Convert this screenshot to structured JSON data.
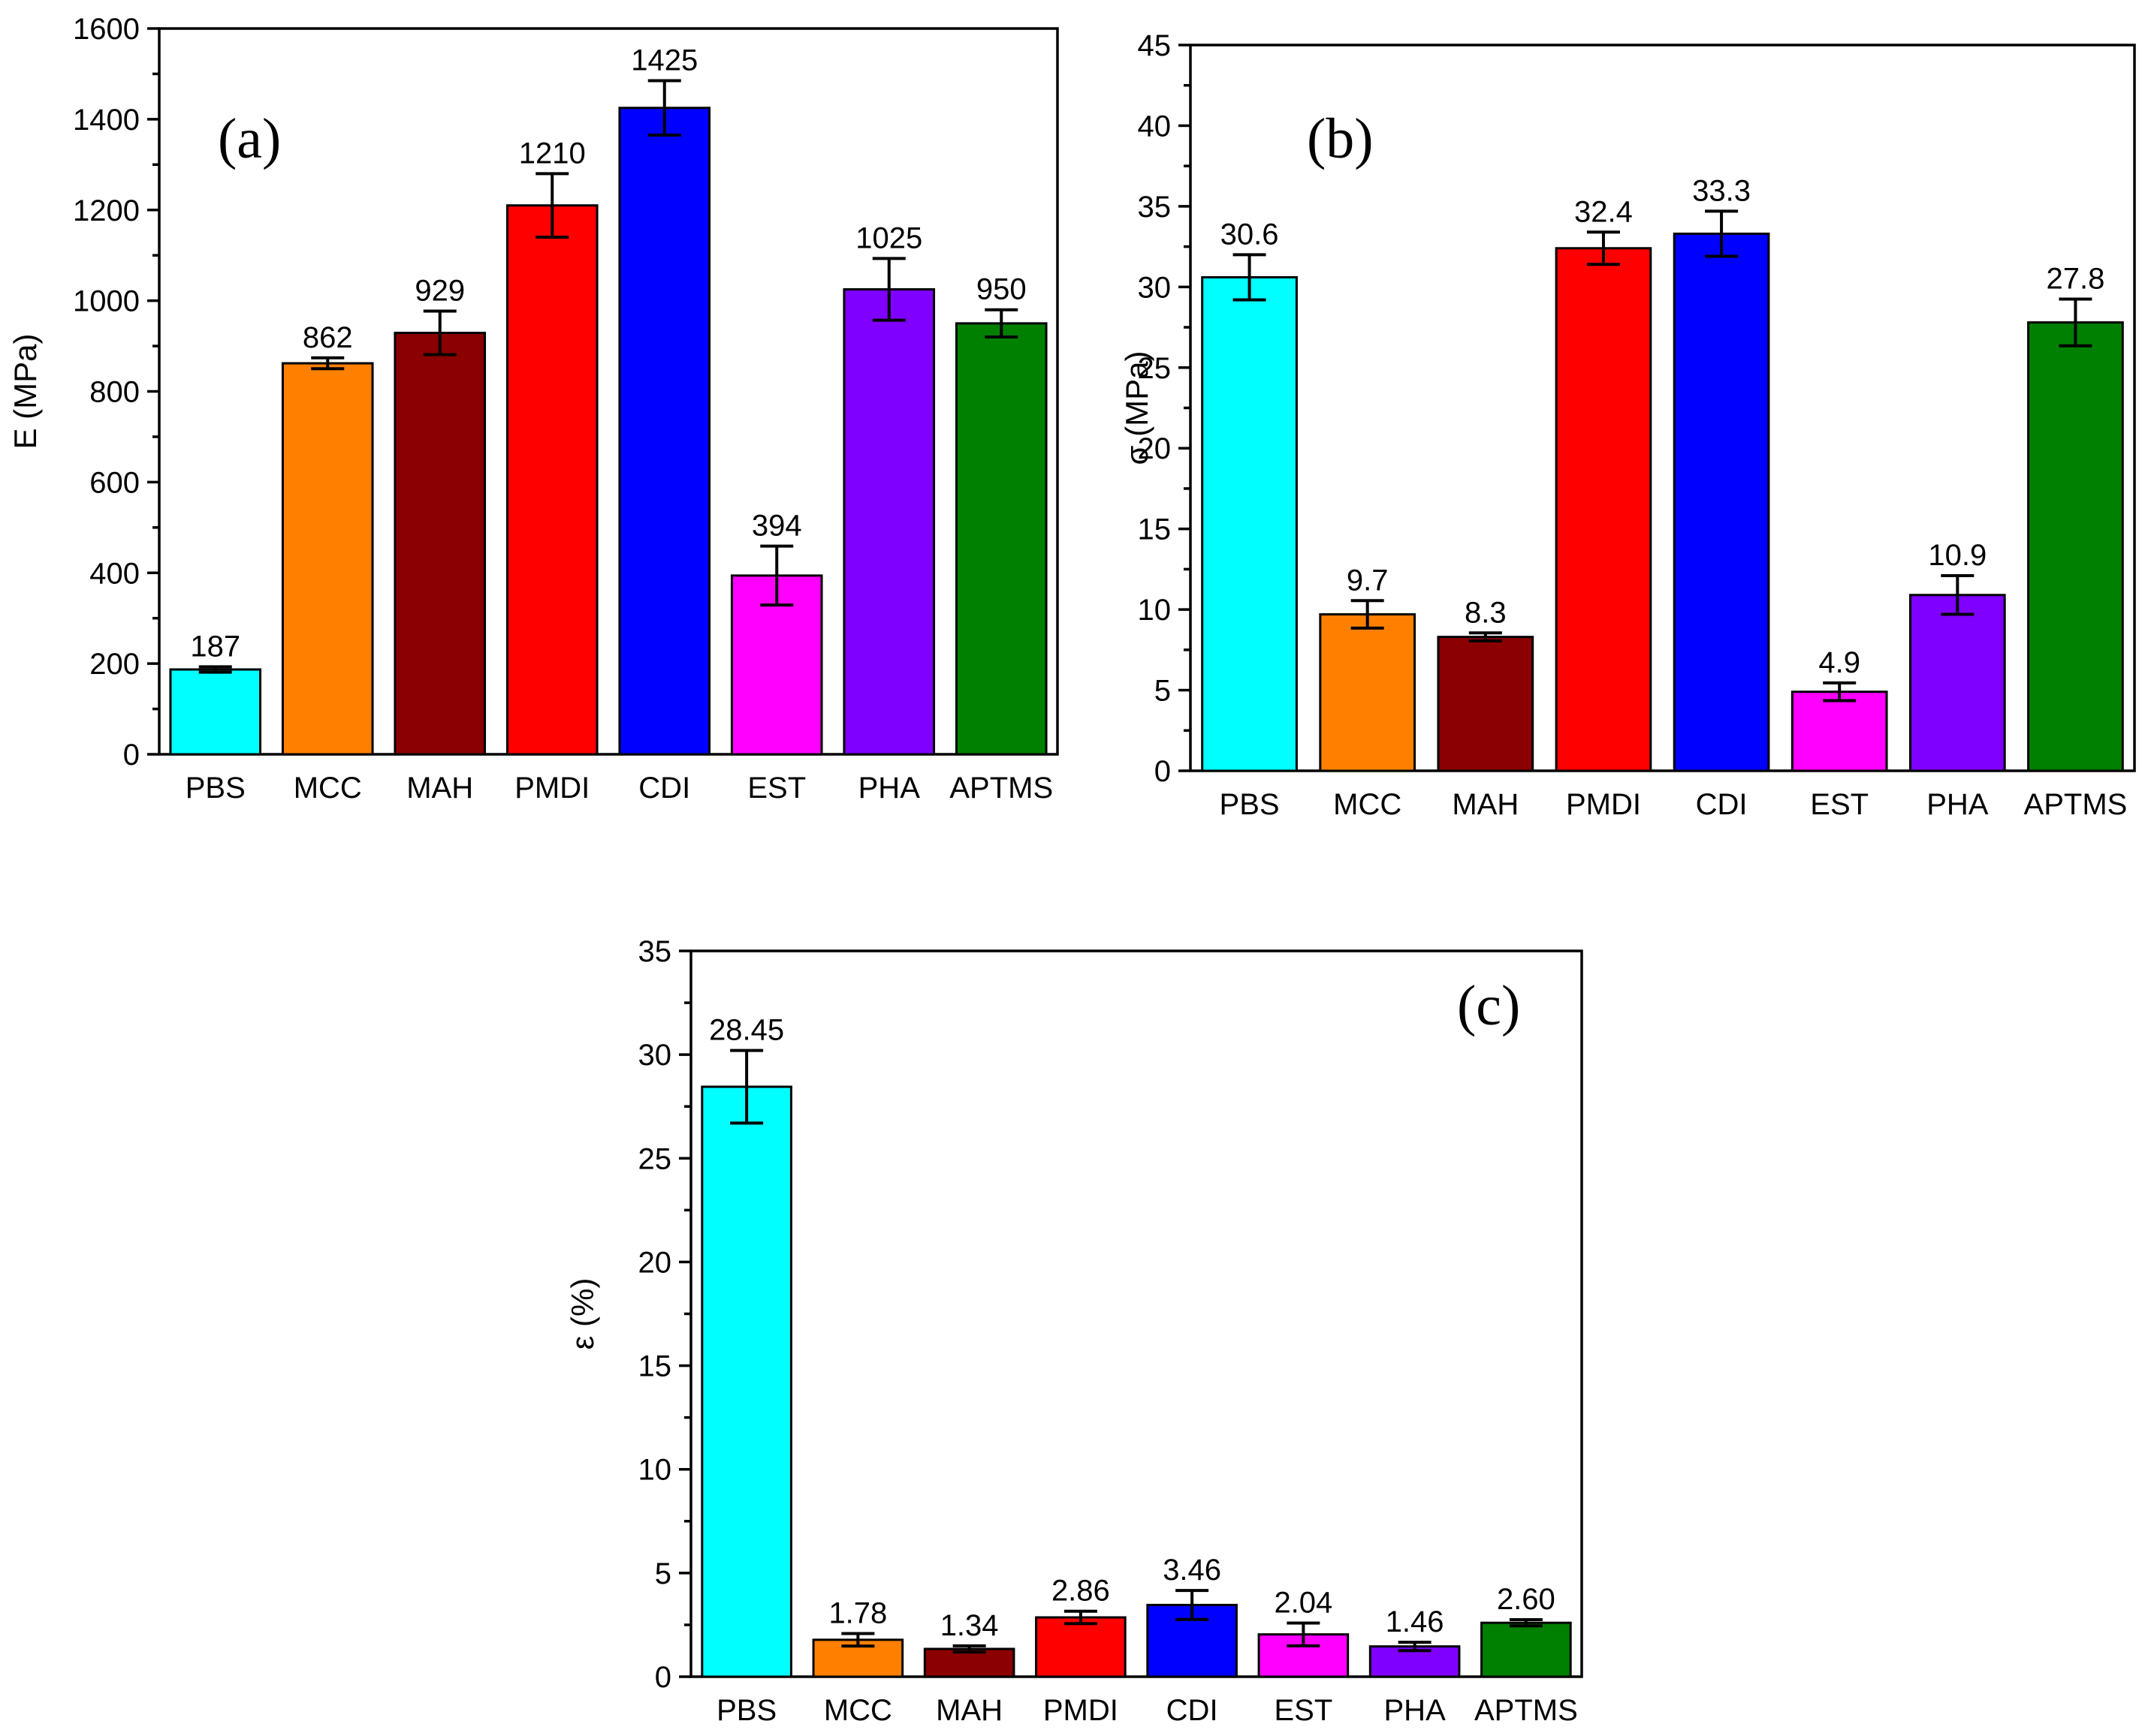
{
  "chart_data": [
    {
      "panel": "(a)",
      "type": "bar",
      "ylabel": "E (MPa)",
      "ylim": [
        0,
        1600
      ],
      "ymajor": 200,
      "categories": [
        "PBS",
        "MCC",
        "MAH",
        "PMDI",
        "CDI",
        "EST",
        "PHA",
        "APTMS"
      ],
      "values": [
        187,
        862,
        929,
        1210,
        1425,
        394,
        1025,
        950
      ],
      "errors": [
        6,
        12,
        48,
        70,
        60,
        65,
        68,
        30
      ],
      "value_labels": [
        "187",
        "862",
        "929",
        "1210",
        "1425",
        "394",
        "1025",
        "950"
      ],
      "tick_labels": [
        "0",
        "200",
        "400",
        "600",
        "800",
        "1000",
        "1200",
        "1400",
        "1600"
      ],
      "colors": [
        "#00FFFF",
        "#FF8000",
        "#8B0000",
        "#FF0000",
        "#0000FF",
        "#FF00FF",
        "#8000FF",
        "#008000"
      ]
    },
    {
      "panel": "(b)",
      "type": "bar",
      "ylabel": "σ (MPa)",
      "ylim": [
        0,
        45
      ],
      "ymajor": 5,
      "categories": [
        "PBS",
        "MCC",
        "MAH",
        "PMDI",
        "CDI",
        "EST",
        "PHA",
        "APTMS"
      ],
      "values": [
        30.6,
        9.7,
        8.3,
        32.4,
        33.3,
        4.9,
        10.9,
        27.8
      ],
      "errors": [
        1.4,
        0.85,
        0.25,
        1.0,
        1.4,
        0.55,
        1.2,
        1.45
      ],
      "value_labels": [
        "30.6",
        "9.7",
        "8.3",
        "32.4",
        "33.3",
        "4.9",
        "10.9",
        "27.8"
      ],
      "tick_labels": [
        "0",
        "5",
        "10",
        "15",
        "20",
        "25",
        "30",
        "35",
        "40",
        "45"
      ],
      "colors": [
        "#00FFFF",
        "#FF8000",
        "#8B0000",
        "#FF0000",
        "#0000FF",
        "#FF00FF",
        "#8000FF",
        "#008000"
      ]
    },
    {
      "panel": "(c)",
      "type": "bar",
      "ylabel": "ε (%)",
      "ylim": [
        0,
        35
      ],
      "ymajor": 5,
      "categories": [
        "PBS",
        "MCC",
        "MAH",
        "PMDI",
        "CDI",
        "EST",
        "PHA",
        "APTMS"
      ],
      "values": [
        28.45,
        1.78,
        1.34,
        2.86,
        3.46,
        2.04,
        1.46,
        2.6
      ],
      "errors": [
        1.75,
        0.3,
        0.15,
        0.3,
        0.7,
        0.55,
        0.2,
        0.15
      ],
      "value_labels": [
        "28.45",
        "1.78",
        "1.34",
        "2.86",
        "3.46",
        "2.04",
        "1.46",
        "2.60"
      ],
      "tick_labels": [
        "0",
        "5",
        "10",
        "15",
        "20",
        "25",
        "30",
        "35"
      ],
      "colors": [
        "#00FFFF",
        "#FF8000",
        "#8B0000",
        "#FF0000",
        "#0000FF",
        "#FF00FF",
        "#8000FF",
        "#008000"
      ]
    }
  ]
}
